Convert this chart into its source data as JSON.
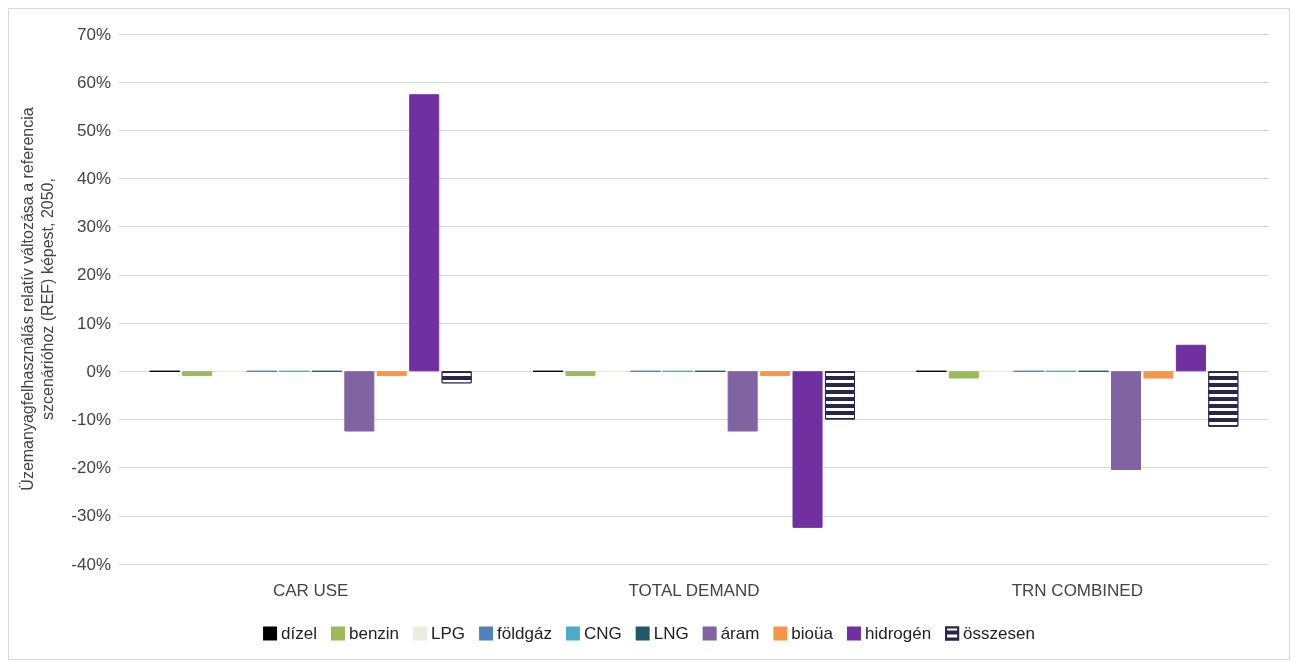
{
  "chart_data": {
    "type": "bar",
    "ylabel": "Üzemanyagfelhasználás relatív változása a referencia\nszcenárióhoz (REF) képest, 2050,",
    "categories": [
      "CAR USE",
      "TOTAL DEMAND",
      "TRN COMBINED"
    ],
    "series": [
      {
        "name": "dízel",
        "color": "#000000",
        "values": [
          0,
          0,
          0
        ]
      },
      {
        "name": "benzin",
        "color": "#9bbb59",
        "values": [
          -1,
          -1,
          -1.5
        ]
      },
      {
        "name": "LPG",
        "color": "#eeece1",
        "values": [
          0,
          0,
          0
        ]
      },
      {
        "name": "földgáz",
        "color": "#4f81bd",
        "values": [
          0,
          0,
          0
        ]
      },
      {
        "name": "CNG",
        "color": "#4bacc6",
        "values": [
          0,
          0,
          0
        ]
      },
      {
        "name": "LNG",
        "color": "#215968",
        "values": [
          0,
          0,
          0
        ]
      },
      {
        "name": "áram",
        "color": "#8064a2",
        "values": [
          -12.5,
          -12.5,
          -20.5
        ]
      },
      {
        "name": "bioüa",
        "color": "#f79646",
        "values": [
          -1,
          -1,
          -1.5
        ]
      },
      {
        "name": "hidrogén",
        "color": "#7030a0",
        "values": [
          57.5,
          -32.5,
          5.5
        ]
      },
      {
        "name": "összesen",
        "color": "#2b2549",
        "values": [
          -2.5,
          -10,
          -11.5
        ]
      }
    ],
    "ylim": [
      -40,
      70
    ],
    "yticks": [
      {
        "value": -40,
        "label": "-40%"
      },
      {
        "value": -30,
        "label": "-30%"
      },
      {
        "value": -20,
        "label": "-20%"
      },
      {
        "value": -10,
        "label": "-10%"
      },
      {
        "value": 0,
        "label": "0%"
      },
      {
        "value": 10,
        "label": "10%"
      },
      {
        "value": 20,
        "label": "20%"
      },
      {
        "value": 30,
        "label": "30%"
      },
      {
        "value": 40,
        "label": "40%"
      },
      {
        "value": 50,
        "label": "50%"
      },
      {
        "value": 60,
        "label": "60%"
      },
      {
        "value": 70,
        "label": "70%"
      }
    ],
    "grid": "y",
    "legend": "bottom"
  }
}
